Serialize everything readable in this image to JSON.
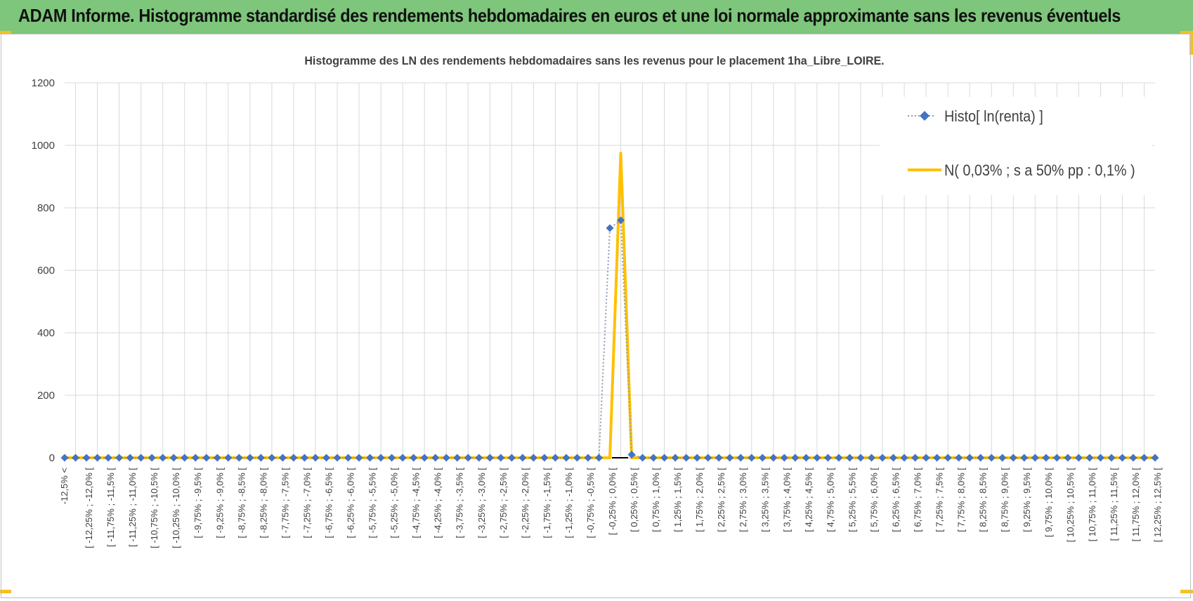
{
  "header": {
    "title": "ADAM Informe. Histogramme standardisé des rendements hebdomadaires en euros et une loi normale approximante sans les revenus éventuels"
  },
  "colors": {
    "banner": "#7dc67b",
    "accent": "#f5c120",
    "series_histo": "#4472c4",
    "series_normal": "#ffc000"
  },
  "chart_data": {
    "type": "line",
    "title": "Histogramme des LN des rendements hebdomadaires sans les revenus pour le placement 1ha_Libre_LOIRE.",
    "xlabel": "",
    "ylabel": "",
    "ylim": [
      0,
      1200
    ],
    "yticks": [
      0,
      200,
      400,
      600,
      800,
      1000,
      1200
    ],
    "grid": true,
    "legend_position": "top-right",
    "categories": [
      "-12,5% <",
      "[ -12,25% ; -12,0% [",
      "[ -11,75% ; -11,5% [",
      "[ -11,25% ; -11,0% [",
      "[ -10,75% ; -10,5% [",
      "[ -10,25% ; -10,0% [",
      "[ -9,75% ; -9,5% [",
      "[ -9,25% ; -9,0% [",
      "[ -8,75% ; -8,5% [",
      "[ -8,25% ; -8,0% [",
      "[ -7,75% ; -7,5% [",
      "[ -7,25% ; -7,0% [",
      "[ -6,75% ; -6,5% [",
      "[ -6,25% ; -6,0% [",
      "[ -5,75% ; -5,5% [",
      "[ -5,25% ; -5,0% [",
      "[ -4,75% ; -4,5% [",
      "[ -4,25% ; -4,0% [",
      "[ -3,75% ; -3,5% [",
      "[ -3,25% ; -3,0% [",
      "[ -2,75% ; -2,5% [",
      "[ -2,25% ; -2,0% [",
      "[ -1,75% ; -1,5% [",
      "[ -1,25% ; -1,0% [",
      "[ -0,75% ; -0,5% [",
      "[ -0,25% ; 0,0% [",
      "[ 0,25% ; 0,5% [",
      "[ 0,75% ; 1,0% [",
      "[ 1,25% ; 1,5% [",
      "[ 1,75% ; 2,0% [",
      "[ 2,25% ; 2,5% [",
      "[ 2,75% ; 3,0% [",
      "[ 3,25% ; 3,5% [",
      "[ 3,75% ; 4,0% [",
      "[ 4,25% ; 4,5% [",
      "[ 4,75% ; 5,0% [",
      "[ 5,25% ; 5,5% [",
      "[ 5,75% ; 6,0% [",
      "[ 6,25% ; 6,5% [",
      "[ 6,75% ; 7,0% [",
      "[ 7,25% ; 7,5% [",
      "[ 7,75% ; 8,0% [",
      "[ 8,25% ; 8,5% [",
      "[ 8,75% ; 9,0% [",
      "[ 9,25% ; 9,5% [",
      "[ 9,75% ; 10,0% [",
      "[ 10,25% ; 10,5% [",
      "[ 10,75% ; 11,0% [",
      "[ 11,25% ; 11,5% [",
      "[ 11,75% ; 12,0% [",
      "[ 12,25% ; 12,5% ["
    ],
    "x": [
      -12.5,
      -12.25,
      -12,
      -11.75,
      -11.5,
      -11.25,
      -11,
      -10.75,
      -10.5,
      -10.25,
      -10,
      -9.75,
      -9.5,
      -9.25,
      -9,
      -8.75,
      -8.5,
      -8.25,
      -8,
      -7.75,
      -7.5,
      -7.25,
      -7,
      -6.75,
      -6.5,
      -6.25,
      -6,
      -5.75,
      -5.5,
      -5.25,
      -5,
      -4.75,
      -4.5,
      -4.25,
      -4,
      -3.75,
      -3.5,
      -3.25,
      -3,
      -2.75,
      -2.5,
      -2.25,
      -2,
      -1.75,
      -1.5,
      -1.25,
      -1,
      -0.75,
      -0.5,
      -0.25,
      0,
      0.25,
      0.5,
      0.75,
      1,
      1.25,
      1.5,
      1.75,
      2,
      2.25,
      2.5,
      2.75,
      3,
      3.25,
      3.5,
      3.75,
      4,
      4.25,
      4.5,
      4.75,
      5,
      5.25,
      5.5,
      5.75,
      6,
      6.25,
      6.5,
      6.75,
      7,
      7.25,
      7.5,
      7.75,
      8,
      8.25,
      8.5,
      8.75,
      9,
      9.25,
      9.5,
      9.75,
      10,
      10.25,
      10.5,
      10.75,
      11,
      11.25,
      11.5,
      11.75,
      12,
      12.25,
      12.5
    ],
    "series": [
      {
        "name": "Histo[ ln(renta) ]",
        "style": "dotted-line-with-diamond-markers",
        "values": [
          0,
          0,
          0,
          0,
          0,
          0,
          0,
          0,
          0,
          0,
          0,
          0,
          0,
          0,
          0,
          0,
          0,
          0,
          0,
          0,
          0,
          0,
          0,
          0,
          0,
          0,
          0,
          0,
          0,
          0,
          0,
          0,
          0,
          0,
          0,
          0,
          0,
          0,
          0,
          0,
          0,
          0,
          0,
          0,
          0,
          0,
          0,
          0,
          0,
          0,
          735,
          760,
          10,
          0,
          0,
          0,
          0,
          0,
          0,
          0,
          0,
          0,
          0,
          0,
          0,
          0,
          0,
          0,
          0,
          0,
          0,
          0,
          0,
          0,
          0,
          0,
          0,
          0,
          0,
          0,
          0,
          0,
          0,
          0,
          0,
          0,
          0,
          0,
          0,
          0,
          0,
          0,
          0,
          0,
          0,
          0,
          0,
          0,
          0,
          0,
          0
        ]
      },
      {
        "name": "N( 0,03% ; s a 50% pp : 0,1% )",
        "style": "solid-line",
        "values": [
          0,
          0,
          0,
          0,
          0,
          0,
          0,
          0,
          0,
          0,
          0,
          0,
          0,
          0,
          0,
          0,
          0,
          0,
          0,
          0,
          0,
          0,
          0,
          0,
          0,
          0,
          0,
          0,
          0,
          0,
          0,
          0,
          0,
          0,
          0,
          0,
          0,
          0,
          0,
          0,
          0,
          0,
          0,
          0,
          0,
          0,
          0,
          0,
          0,
          0,
          0,
          975,
          0,
          0,
          0,
          0,
          0,
          0,
          0,
          0,
          0,
          0,
          0,
          0,
          0,
          0,
          0,
          0,
          0,
          0,
          0,
          0,
          0,
          0,
          0,
          0,
          0,
          0,
          0,
          0,
          0,
          0,
          0,
          0,
          0,
          0,
          0,
          0,
          0,
          0,
          0,
          0,
          0,
          0,
          0,
          0,
          0,
          0,
          0,
          0,
          0
        ]
      }
    ]
  }
}
